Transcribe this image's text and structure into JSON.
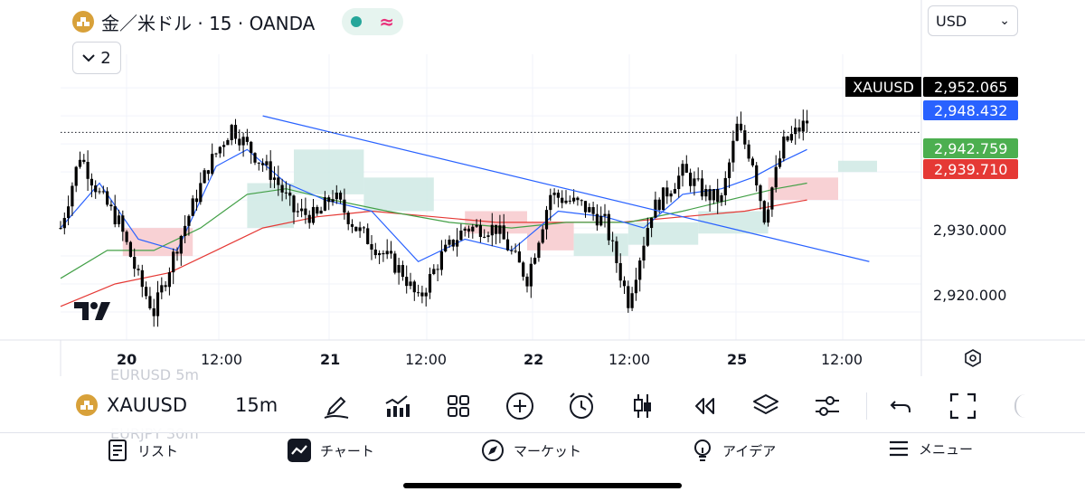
{
  "header": {
    "title": "金／米ドル · 15 · OANDA",
    "status_wave": "≈",
    "collapse_count": "2",
    "currency": "USD",
    "currency_caret": "⌄"
  },
  "colors": {
    "up_candle": "#000000",
    "down_candle": "#000000",
    "ema_fast": "#2962ff",
    "ema_mid": "#43a047",
    "ema_slow": "#e53935",
    "cloud_bull": "#cfe9e4",
    "cloud_bear": "#f7c9cd",
    "trendline": "#2962ff"
  },
  "price_axis": {
    "labels": [
      "2,930.000",
      "2,920.000"
    ]
  },
  "price_tags": {
    "symbol": "XAUUSD",
    "last": "2,952.065",
    "ema_fast": "2,948.432",
    "ema_mid": "2,942.759",
    "ema_slow": "2,939.710"
  },
  "time_axis": {
    "labels": [
      {
        "text": "20",
        "bold": true
      },
      {
        "text": "12:00",
        "bold": false
      },
      {
        "text": "21",
        "bold": true
      },
      {
        "text": "12:00",
        "bold": false
      },
      {
        "text": "22",
        "bold": true
      },
      {
        "text": "12:00",
        "bold": false
      },
      {
        "text": "25",
        "bold": true
      },
      {
        "text": "12:00",
        "bold": false
      }
    ]
  },
  "toolbar": {
    "symbol": "XAUUSD",
    "interval": "15m",
    "ghost_top": "EURUSD  5m",
    "ghost_bottom": "EURJPY  30m",
    "icons": [
      "draw-pen-icon",
      "indicators-icon",
      "layouts-icon",
      "add-icon",
      "alert-clock-icon",
      "candle-style-icon",
      "replay-icon",
      "layers-icon",
      "settings-sliders-icon",
      "undo-icon",
      "fullscreen-icon"
    ]
  },
  "bottom_nav": {
    "items": [
      {
        "label": "リスト",
        "icon": "list-icon"
      },
      {
        "label": "チャート",
        "icon": "chart-icon"
      },
      {
        "label": "マーケット",
        "icon": "compass-icon"
      },
      {
        "label": "アイデア",
        "icon": "lightbulb-icon"
      },
      {
        "label": "メニュー",
        "icon": "menu-icon"
      }
    ]
  },
  "chart_data": {
    "type": "candlestick",
    "symbol": "XAUUSD",
    "interval": "15m",
    "ylim": [
      2915.0,
      2966.0
    ],
    "last_price": 2952.065,
    "price_line": 2952.065,
    "x_ticks": [
      "20",
      "12:00",
      "21",
      "12:00",
      "22",
      "12:00",
      "25",
      "12:00"
    ],
    "y_ticks": [
      2920.0,
      2930.0
    ],
    "close_path": [
      [
        0,
        2935
      ],
      [
        5,
        2948
      ],
      [
        10,
        2941
      ],
      [
        15,
        2936
      ],
      [
        20,
        2926
      ],
      [
        24,
        2920
      ],
      [
        30,
        2932
      ],
      [
        38,
        2946
      ],
      [
        44,
        2953
      ],
      [
        50,
        2948
      ],
      [
        55,
        2944
      ],
      [
        60,
        2938
      ],
      [
        66,
        2937
      ],
      [
        70,
        2941
      ],
      [
        76,
        2935
      ],
      [
        82,
        2931
      ],
      [
        88,
        2927
      ],
      [
        92,
        2922
      ],
      [
        98,
        2930
      ],
      [
        104,
        2935
      ],
      [
        112,
        2935
      ],
      [
        120,
        2926
      ],
      [
        126,
        2941
      ],
      [
        134,
        2939
      ],
      [
        140,
        2936
      ],
      [
        146,
        2922
      ],
      [
        152,
        2938
      ],
      [
        160,
        2945
      ],
      [
        166,
        2941
      ],
      [
        170,
        2940
      ],
      [
        174,
        2953
      ],
      [
        178,
        2947
      ],
      [
        181,
        2937
      ],
      [
        186,
        2950
      ],
      [
        192,
        2954
      ]
    ],
    "ema_fast": [
      [
        0,
        2935
      ],
      [
        10,
        2943
      ],
      [
        20,
        2933
      ],
      [
        30,
        2931
      ],
      [
        40,
        2946
      ],
      [
        48,
        2949
      ],
      [
        58,
        2943
      ],
      [
        68,
        2940
      ],
      [
        80,
        2938
      ],
      [
        92,
        2929
      ],
      [
        104,
        2933
      ],
      [
        116,
        2931
      ],
      [
        128,
        2938
      ],
      [
        140,
        2937
      ],
      [
        150,
        2935
      ],
      [
        160,
        2941
      ],
      [
        170,
        2942
      ],
      [
        178,
        2944
      ],
      [
        186,
        2947
      ],
      [
        192,
        2949
      ]
    ],
    "ema_mid": [
      [
        0,
        2926
      ],
      [
        12,
        2931
      ],
      [
        24,
        2931
      ],
      [
        36,
        2935
      ],
      [
        48,
        2941
      ],
      [
        58,
        2942
      ],
      [
        70,
        2940
      ],
      [
        84,
        2938
      ],
      [
        100,
        2936
      ],
      [
        116,
        2935
      ],
      [
        130,
        2936
      ],
      [
        146,
        2936
      ],
      [
        160,
        2938
      ],
      [
        172,
        2940
      ],
      [
        184,
        2942
      ],
      [
        192,
        2943
      ]
    ],
    "ema_slow": [
      [
        0,
        2921
      ],
      [
        14,
        2925
      ],
      [
        28,
        2927
      ],
      [
        40,
        2931
      ],
      [
        52,
        2935
      ],
      [
        66,
        2937
      ],
      [
        80,
        2938
      ],
      [
        96,
        2937
      ],
      [
        112,
        2936
      ],
      [
        128,
        2936
      ],
      [
        144,
        2936
      ],
      [
        160,
        2937
      ],
      [
        176,
        2938
      ],
      [
        192,
        2940
      ]
    ],
    "trendline": [
      [
        52,
        2955
      ],
      [
        208,
        2929
      ]
    ],
    "ichimoku_cloud": [
      {
        "x0": 16,
        "x1": 34,
        "top": 2935,
        "bottom": 2930,
        "bias": "bear"
      },
      {
        "x0": 48,
        "x1": 60,
        "top": 2943,
        "bottom": 2935,
        "bias": "bull"
      },
      {
        "x0": 60,
        "x1": 78,
        "top": 2949,
        "bottom": 2941,
        "bias": "bull"
      },
      {
        "x0": 78,
        "x1": 96,
        "top": 2944,
        "bottom": 2938,
        "bias": "bull"
      },
      {
        "x0": 104,
        "x1": 120,
        "top": 2938,
        "bottom": 2934,
        "bias": "bear"
      },
      {
        "x0": 120,
        "x1": 132,
        "top": 2936,
        "bottom": 2931,
        "bias": "bear"
      },
      {
        "x0": 132,
        "x1": 146,
        "top": 2934,
        "bottom": 2930,
        "bias": "bull"
      },
      {
        "x0": 146,
        "x1": 164,
        "top": 2936,
        "bottom": 2932,
        "bias": "bull"
      },
      {
        "x0": 164,
        "x1": 182,
        "top": 2938,
        "bottom": 2934,
        "bias": "bull"
      },
      {
        "x0": 182,
        "x1": 200,
        "top": 2944,
        "bottom": 2940,
        "bias": "bear"
      },
      {
        "x0": 200,
        "x1": 210,
        "top": 2947,
        "bottom": 2945,
        "bias": "bull"
      }
    ]
  }
}
